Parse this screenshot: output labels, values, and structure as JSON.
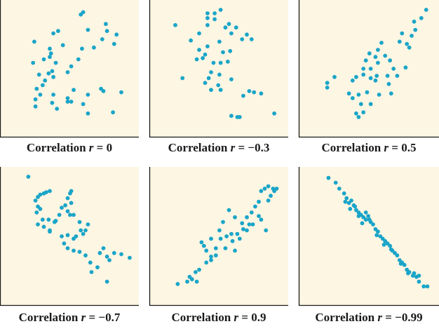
{
  "colors": {
    "point": "#1aa5c8",
    "panel_bg": "#fdf6e3",
    "axis": "#1a1a1a"
  },
  "chart_data": [
    {
      "type": "scatter",
      "caption": {
        "prefix": "Correlation ",
        "variable": "r",
        "relation": " = ",
        "value": "0"
      },
      "correlation": 0,
      "xlim": [
        0,
        100
      ],
      "ylim": [
        0,
        100
      ],
      "points": [
        [
          17,
          73
        ],
        [
          30,
          60
        ],
        [
          37,
          82
        ],
        [
          16,
          55
        ],
        [
          33,
          43
        ],
        [
          41,
          70
        ],
        [
          48,
          52
        ],
        [
          62,
          83
        ],
        [
          57,
          67
        ],
        [
          67,
          68
        ],
        [
          78,
          82
        ],
        [
          86,
          79
        ],
        [
          74,
          75
        ],
        [
          84,
          71
        ],
        [
          77,
          88
        ],
        [
          56,
          96
        ],
        [
          58,
          98
        ],
        [
          32,
          48
        ],
        [
          29,
          46
        ],
        [
          45,
          47
        ],
        [
          21,
          45
        ],
        [
          25,
          58
        ],
        [
          19,
          33
        ],
        [
          18,
          24
        ],
        [
          22,
          28
        ],
        [
          24,
          36
        ],
        [
          33,
          28
        ],
        [
          32,
          21
        ],
        [
          36,
          16
        ],
        [
          45,
          25
        ],
        [
          48,
          22
        ],
        [
          62,
          28
        ],
        [
          73,
          33
        ],
        [
          75,
          31
        ],
        [
          90,
          30
        ],
        [
          45,
          22
        ],
        [
          50,
          32
        ],
        [
          58,
          20
        ],
        [
          62,
          12
        ],
        [
          83,
          13
        ],
        [
          18,
          18
        ],
        [
          26,
          40
        ],
        [
          54,
          58
        ],
        [
          35,
          55
        ],
        [
          33,
          80
        ],
        [
          30,
          67
        ],
        [
          31,
          63
        ]
      ]
    },
    {
      "type": "scatter",
      "caption": {
        "prefix": "Correlation ",
        "variable": "r",
        "relation": " = ",
        "value": "−0.3"
      },
      "correlation": -0.3,
      "xlim": [
        0,
        100
      ],
      "ylim": [
        0,
        100
      ],
      "points": [
        [
          10,
          87
        ],
        [
          23,
          74
        ],
        [
          37,
          93
        ],
        [
          37,
          97
        ],
        [
          30,
          80
        ],
        [
          37,
          87
        ],
        [
          43,
          92
        ],
        [
          52,
          85
        ],
        [
          57,
          80
        ],
        [
          66,
          75
        ],
        [
          74,
          75
        ],
        [
          56,
          65
        ],
        [
          50,
          64
        ],
        [
          47,
          73
        ],
        [
          37,
          69
        ],
        [
          30,
          66
        ],
        [
          33,
          59
        ],
        [
          42,
          55
        ],
        [
          48,
          55
        ],
        [
          54,
          56
        ],
        [
          47,
          45
        ],
        [
          40,
          47
        ],
        [
          38,
          42
        ],
        [
          35,
          38
        ],
        [
          40,
          32
        ],
        [
          46,
          36
        ],
        [
          48,
          32
        ],
        [
          57,
          41
        ],
        [
          72,
          31
        ],
        [
          76,
          30
        ],
        [
          82,
          29
        ],
        [
          67,
          27
        ],
        [
          93,
          12
        ],
        [
          57,
          10
        ],
        [
          64,
          9
        ],
        [
          62,
          9
        ],
        [
          55,
          88
        ],
        [
          61,
          85
        ],
        [
          43,
          97
        ],
        [
          48,
          100
        ],
        [
          16,
          42
        ],
        [
          35,
          62
        ],
        [
          28,
          58
        ],
        [
          70,
          79
        ]
      ]
    },
    {
      "type": "scatter",
      "caption": {
        "prefix": "Correlation ",
        "variable": "r",
        "relation": " = ",
        "value": "0.5"
      },
      "correlation": 0.5,
      "xlim": [
        0,
        100
      ],
      "ylim": [
        0,
        100
      ],
      "points": [
        [
          12,
          38
        ],
        [
          12,
          34
        ],
        [
          18,
          43
        ],
        [
          33,
          40
        ],
        [
          36,
          43
        ],
        [
          30,
          29
        ],
        [
          33,
          25
        ],
        [
          38,
          28
        ],
        [
          45,
          30
        ],
        [
          40,
          20
        ],
        [
          42,
          13
        ],
        [
          36,
          12
        ],
        [
          38,
          9
        ],
        [
          42,
          45
        ],
        [
          48,
          42
        ],
        [
          52,
          40
        ],
        [
          48,
          50
        ],
        [
          54,
          55
        ],
        [
          52,
          60
        ],
        [
          44,
          57
        ],
        [
          42,
          50
        ],
        [
          47,
          63
        ],
        [
          54,
          66
        ],
        [
          60,
          61
        ],
        [
          64,
          57
        ],
        [
          62,
          44
        ],
        [
          67,
          50
        ],
        [
          70,
          44
        ],
        [
          77,
          51
        ],
        [
          80,
          68
        ],
        [
          72,
          73
        ],
        [
          74,
          80
        ],
        [
          82,
          78
        ],
        [
          84,
          90
        ],
        [
          90,
          93
        ],
        [
          94,
          100
        ],
        [
          85,
          83
        ],
        [
          78,
          71
        ],
        [
          63,
          37
        ],
        [
          65,
          29
        ],
        [
          57,
          72
        ],
        [
          53,
          44
        ],
        [
          48,
          20
        ],
        [
          55,
          28
        ]
      ]
    },
    {
      "type": "scatter",
      "caption": {
        "prefix": "Correlation ",
        "variable": "r",
        "relation": " = ",
        "value": "−0.7"
      },
      "correlation": -0.7,
      "xlim": [
        0,
        100
      ],
      "ylim": [
        0,
        100
      ],
      "points": [
        [
          12,
          100
        ],
        [
          18,
          80
        ],
        [
          20,
          83
        ],
        [
          22,
          85
        ],
        [
          25,
          86
        ],
        [
          27,
          87
        ],
        [
          30,
          88
        ],
        [
          20,
          75
        ],
        [
          22,
          73
        ],
        [
          19,
          70
        ],
        [
          20,
          60
        ],
        [
          25,
          58
        ],
        [
          30,
          55
        ],
        [
          35,
          63
        ],
        [
          38,
          68
        ],
        [
          40,
          74
        ],
        [
          43,
          76
        ],
        [
          45,
          71
        ],
        [
          47,
          68
        ],
        [
          45,
          82
        ],
        [
          47,
          86
        ],
        [
          48,
          88
        ],
        [
          48,
          78
        ],
        [
          50,
          68
        ],
        [
          55,
          62
        ],
        [
          56,
          55
        ],
        [
          58,
          52
        ],
        [
          60,
          55
        ],
        [
          62,
          60
        ],
        [
          52,
          50
        ],
        [
          50,
          48
        ],
        [
          45,
          51
        ],
        [
          40,
          50
        ],
        [
          42,
          44
        ],
        [
          45,
          40
        ],
        [
          50,
          38
        ],
        [
          55,
          37
        ],
        [
          60,
          34
        ],
        [
          64,
          28
        ],
        [
          65,
          20
        ],
        [
          70,
          24
        ],
        [
          72,
          36
        ],
        [
          75,
          40
        ],
        [
          78,
          33
        ],
        [
          80,
          30
        ],
        [
          84,
          36
        ],
        [
          90,
          35
        ],
        [
          97,
          32
        ],
        [
          78,
          12
        ],
        [
          34,
          62
        ],
        [
          29,
          64
        ],
        [
          24,
          64
        ],
        [
          30,
          54
        ]
      ]
    },
    {
      "type": "scatter",
      "caption": {
        "prefix": "Correlation ",
        "variable": "r",
        "relation": " = ",
        "value": "0.9"
      },
      "correlation": 0.9,
      "xlim": [
        0,
        100
      ],
      "ylim": [
        0,
        100
      ],
      "points": [
        [
          12,
          10
        ],
        [
          20,
          12
        ],
        [
          24,
          14
        ],
        [
          28,
          12
        ],
        [
          30,
          22
        ],
        [
          36,
          28
        ],
        [
          40,
          33
        ],
        [
          44,
          40
        ],
        [
          48,
          48
        ],
        [
          53,
          50
        ],
        [
          57,
          52
        ],
        [
          62,
          52
        ],
        [
          67,
          56
        ],
        [
          72,
          60
        ],
        [
          80,
          67
        ],
        [
          88,
          80
        ],
        [
          90,
          84
        ],
        [
          93,
          88
        ],
        [
          95,
          90
        ],
        [
          88,
          92
        ],
        [
          85,
          90
        ],
        [
          82,
          88
        ],
        [
          80,
          79
        ],
        [
          77,
          75
        ],
        [
          74,
          70
        ],
        [
          70,
          66
        ],
        [
          66,
          61
        ],
        [
          60,
          66
        ],
        [
          55,
          72
        ],
        [
          50,
          62
        ],
        [
          47,
          55
        ],
        [
          40,
          48
        ],
        [
          34,
          42
        ],
        [
          32,
          45
        ],
        [
          36,
          38
        ],
        [
          27,
          20
        ],
        [
          22,
          16
        ],
        [
          40,
          30
        ],
        [
          44,
          34
        ],
        [
          52,
          40
        ],
        [
          58,
          46
        ],
        [
          64,
          48
        ],
        [
          70,
          55
        ],
        [
          75,
          60
        ],
        [
          82,
          64
        ],
        [
          86,
          55
        ],
        [
          92,
          90
        ],
        [
          60,
          38
        ]
      ]
    },
    {
      "type": "scatter",
      "caption": {
        "prefix": "Correlation ",
        "variable": "r",
        "relation": " = ",
        "value": "−0.99"
      },
      "correlation": -0.99,
      "xlim": [
        0,
        100
      ],
      "ylim": [
        0,
        100
      ],
      "points": [
        [
          13,
          99
        ],
        [
          19,
          95
        ],
        [
          22,
          90
        ],
        [
          26,
          86
        ],
        [
          28,
          82
        ],
        [
          30,
          78
        ],
        [
          32,
          80
        ],
        [
          34,
          76
        ],
        [
          36,
          72
        ],
        [
          38,
          70
        ],
        [
          40,
          68
        ],
        [
          42,
          66
        ],
        [
          44,
          64
        ],
        [
          46,
          67
        ],
        [
          48,
          62
        ],
        [
          50,
          60
        ],
        [
          52,
          56
        ],
        [
          54,
          54
        ],
        [
          56,
          50
        ],
        [
          58,
          48
        ],
        [
          60,
          46
        ],
        [
          62,
          44
        ],
        [
          64,
          42
        ],
        [
          66,
          38
        ],
        [
          68,
          36
        ],
        [
          70,
          34
        ],
        [
          72,
          30
        ],
        [
          74,
          28
        ],
        [
          76,
          26
        ],
        [
          78,
          22
        ],
        [
          80,
          20
        ],
        [
          83,
          17
        ],
        [
          86,
          16
        ],
        [
          88,
          12
        ],
        [
          92,
          8
        ],
        [
          95,
          8
        ],
        [
          27,
          79
        ],
        [
          31,
          73
        ],
        [
          35,
          75
        ],
        [
          38,
          67
        ],
        [
          41,
          61
        ],
        [
          47,
          64
        ],
        [
          53,
          51
        ],
        [
          59,
          43
        ],
        [
          65,
          39
        ],
        [
          73,
          27
        ],
        [
          79,
          19
        ],
        [
          88,
          17
        ],
        [
          84,
          19
        ],
        [
          44,
          70
        ]
      ]
    }
  ]
}
